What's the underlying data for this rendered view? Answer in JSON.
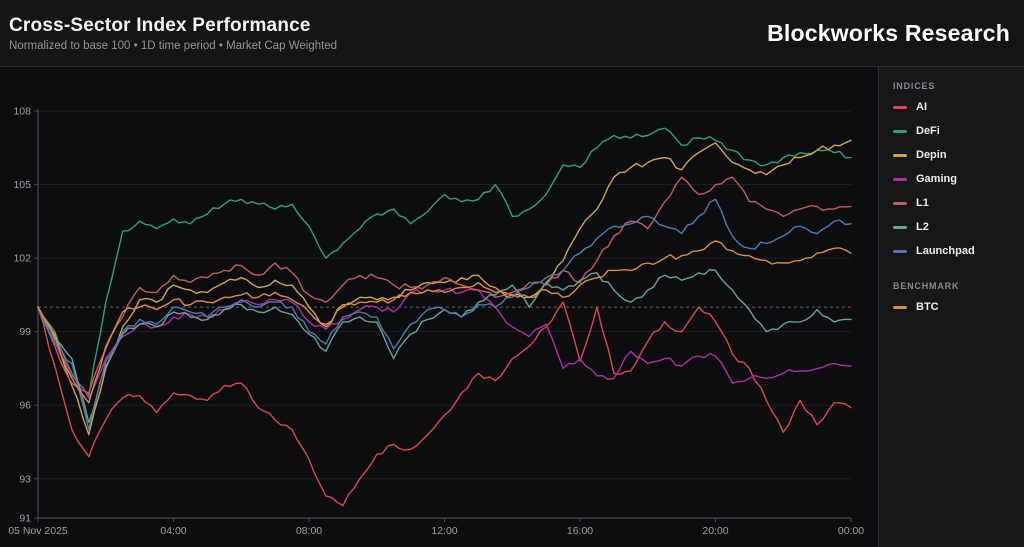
{
  "header": {
    "title": "Cross-Sector Index Performance",
    "subtitle": "Normalized to base 100 • 1D time period • Market Cap Weighted",
    "brand": "Blockworks Research"
  },
  "legend": {
    "indices_label": "INDICES",
    "benchmark_label": "BENCHMARK",
    "indices": [
      {
        "label": "AI",
        "color": "#e0454b"
      },
      {
        "label": "DeFi",
        "color": "#2da26e"
      },
      {
        "label": "Depin",
        "color": "#cfa640"
      },
      {
        "label": "Gaming",
        "color": "#b12ba5"
      },
      {
        "label": "L1",
        "color": "#c45a5d"
      },
      {
        "label": "L2",
        "color": "#64a39a"
      },
      {
        "label": "Launchpad",
        "color": "#5179ab"
      }
    ],
    "benchmark": [
      {
        "label": "BTC",
        "color": "#dc8c3a"
      }
    ]
  },
  "chart_data": {
    "type": "line",
    "title": "Cross-Sector Index Performance",
    "normalized_base": 100,
    "baseline": 100,
    "ylim": [
      91.4,
      108
    ],
    "y_ticks": [
      108,
      105,
      102,
      99,
      96,
      93
    ],
    "y_min_label": "91",
    "x_range": [
      0,
      24
    ],
    "x_step_hours": 0.5,
    "x_ticks": [
      {
        "hour": 0,
        "label": "05 Nov 2025"
      },
      {
        "hour": 4,
        "label": "04:00"
      },
      {
        "hour": 8,
        "label": "08:00"
      },
      {
        "hour": 12,
        "label": "12:00"
      },
      {
        "hour": 16,
        "label": "16:00"
      },
      {
        "hour": 20,
        "label": "20:00"
      },
      {
        "hour": 24,
        "label": "00:00"
      }
    ],
    "grid_color": "#1d1e22",
    "baseline_color": "#7a7d82",
    "axis_color": "#45474d",
    "tick_text_color": "#9b9ea3",
    "series": [
      {
        "name": "AI",
        "color": "#e0454b",
        "values": [
          100,
          97.6,
          95.0,
          93.9,
          95.4,
          96.3,
          96.4,
          95.7,
          96.5,
          96.4,
          96.2,
          96.8,
          96.9,
          95.9,
          95.4,
          95.0,
          93.8,
          92.3,
          91.9,
          93.0,
          94.0,
          94.4,
          94.2,
          94.8,
          95.6,
          96.5,
          97.3,
          97.0,
          97.9,
          98.4,
          99.2,
          100.2,
          97.8,
          100.0,
          97.3,
          97.4,
          98.6,
          99.4,
          99.0,
          100.0,
          99.4,
          98.1,
          97.5,
          96.2,
          94.9,
          96.2,
          95.2,
          96.1,
          95.9
        ]
      },
      {
        "name": "DeFi",
        "color": "#2da26e",
        "values": [
          100,
          99.0,
          97.3,
          96.4,
          100.2,
          103.1,
          103.5,
          103.2,
          103.6,
          103.4,
          103.8,
          104.2,
          104.4,
          104.2,
          104.0,
          104.2,
          103.3,
          102.0,
          102.6,
          103.2,
          103.8,
          104.0,
          103.4,
          103.9,
          104.6,
          104.3,
          104.4,
          105.0,
          103.7,
          104.0,
          104.6,
          105.8,
          105.7,
          106.5,
          107.0,
          106.9,
          107.0,
          107.3,
          106.6,
          106.9,
          106.8,
          106.4,
          106.0,
          105.8,
          106.1,
          106.3,
          106.4,
          106.3,
          106.1
        ]
      },
      {
        "name": "Depin",
        "color": "#cfa640",
        "values": [
          100,
          98.9,
          96.8,
          94.8,
          97.5,
          99.2,
          100.3,
          100.2,
          100.9,
          100.7,
          100.6,
          101.0,
          101.2,
          100.8,
          101.1,
          100.9,
          100.0,
          99.2,
          100.1,
          100.4,
          100.3,
          100.4,
          100.7,
          101.0,
          101.0,
          101.2,
          101.3,
          100.8,
          100.5,
          100.4,
          101.0,
          101.9,
          103.2,
          104.0,
          105.3,
          105.7,
          105.9,
          106.1,
          105.6,
          106.3,
          106.7,
          105.9,
          105.6,
          105.4,
          105.8,
          106.1,
          106.4,
          106.6,
          106.8
        ]
      },
      {
        "name": "Gaming",
        "color": "#b12ba5",
        "values": [
          100,
          98.6,
          97.2,
          96.3,
          97.9,
          98.8,
          99.3,
          99.2,
          99.6,
          99.7,
          99.6,
          99.9,
          100.2,
          100.1,
          100.3,
          100.2,
          99.4,
          99.1,
          99.5,
          99.9,
          100.0,
          99.8,
          100.6,
          100.7,
          100.7,
          100.6,
          100.7,
          100.0,
          99.2,
          98.8,
          99.3,
          97.5,
          97.9,
          97.2,
          97.1,
          98.2,
          97.7,
          97.9,
          97.6,
          98.0,
          98.0,
          96.9,
          97.1,
          97.1,
          97.3,
          97.4,
          97.5,
          97.7,
          97.6
        ]
      },
      {
        "name": "L1",
        "color": "#c45a5d",
        "values": [
          100,
          98.4,
          96.9,
          96.5,
          98.3,
          99.6,
          100.8,
          100.6,
          101.3,
          101.0,
          101.2,
          101.5,
          101.7,
          101.3,
          101.8,
          101.4,
          100.5,
          100.2,
          100.9,
          101.3,
          101.2,
          100.9,
          100.8,
          100.9,
          101.2,
          100.9,
          100.7,
          100.4,
          100.6,
          101.0,
          100.9,
          101.5,
          101.0,
          101.9,
          102.9,
          103.5,
          103.2,
          104.3,
          105.3,
          104.6,
          105.0,
          105.3,
          104.3,
          104.0,
          103.7,
          104.0,
          104.1,
          104.0,
          104.1
        ]
      },
      {
        "name": "L2",
        "color": "#64a39a",
        "values": [
          100,
          98.7,
          97.9,
          95.3,
          97.6,
          98.9,
          99.3,
          99.2,
          99.8,
          99.6,
          99.5,
          99.9,
          100.1,
          99.8,
          100.0,
          99.7,
          98.9,
          98.2,
          99.4,
          99.6,
          99.4,
          97.9,
          98.9,
          99.5,
          99.9,
          99.6,
          100.2,
          100.5,
          100.9,
          100.0,
          101.0,
          100.7,
          101.1,
          101.4,
          100.7,
          100.2,
          100.7,
          101.3,
          101.1,
          101.4,
          101.5,
          100.7,
          99.9,
          99.0,
          99.3,
          99.4,
          99.9,
          99.4,
          99.5
        ]
      },
      {
        "name": "Launchpad",
        "color": "#5179ab",
        "values": [
          100,
          98.5,
          97.7,
          95.0,
          97.8,
          99.0,
          99.5,
          99.3,
          100.0,
          99.8,
          99.6,
          100.0,
          100.3,
          100.0,
          100.2,
          100.0,
          99.0,
          98.5,
          99.6,
          99.8,
          99.6,
          98.3,
          99.3,
          99.9,
          99.9,
          99.6,
          100.1,
          100.0,
          100.4,
          100.8,
          101.2,
          101.5,
          102.2,
          102.8,
          103.3,
          103.4,
          103.7,
          103.3,
          103.0,
          103.7,
          104.4,
          102.9,
          102.4,
          102.6,
          102.9,
          103.3,
          103.0,
          103.5,
          103.4
        ]
      },
      {
        "name": "BTC",
        "color": "#dc8c3a",
        "values": [
          100,
          98.8,
          97.1,
          96.1,
          98.4,
          99.8,
          100.0,
          99.9,
          100.3,
          100.1,
          100.2,
          100.4,
          100.5,
          100.4,
          100.6,
          100.3,
          99.8,
          99.3,
          100.0,
          100.2,
          100.2,
          100.3,
          100.6,
          100.7,
          100.6,
          100.8,
          101.0,
          100.6,
          100.5,
          100.4,
          100.7,
          100.4,
          100.9,
          101.2,
          101.5,
          101.5,
          101.8,
          102.0,
          102.1,
          102.3,
          102.7,
          102.3,
          102.1,
          101.9,
          101.8,
          101.9,
          102.2,
          102.4,
          102.2
        ]
      }
    ],
    "legend_position": "right",
    "grid": "horizontal-faint"
  }
}
